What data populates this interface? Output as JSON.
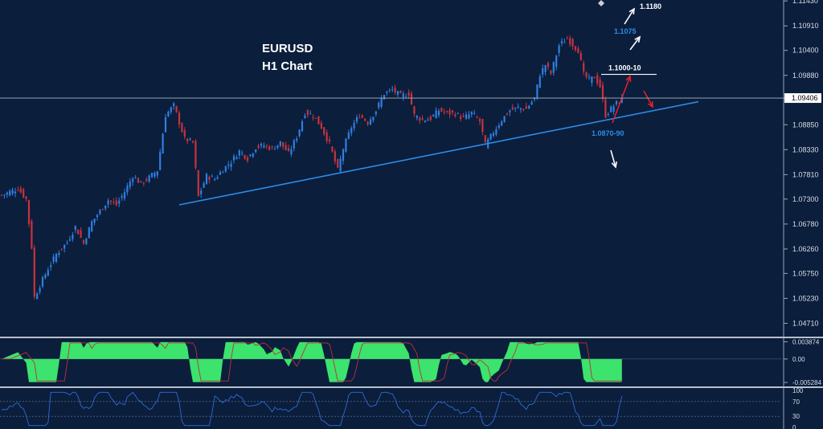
{
  "chart_data": [
    {
      "type": "candlestick",
      "title": "EURUSD",
      "subtitle": "H1 Chart",
      "ylim": [
        1.0445,
        1.1145
      ],
      "y_ticks": [
        "1.11430",
        "1.10910",
        "1.10400",
        "1.09880",
        "1.09406",
        "1.08850",
        "1.08330",
        "1.07810",
        "1.07300",
        "1.06780",
        "1.06260",
        "1.05750",
        "1.05230",
        "1.04710"
      ],
      "y_tick_values": [
        1.1143,
        1.1091,
        1.104,
        1.0988,
        1.09406,
        1.0885,
        1.0833,
        1.0781,
        1.073,
        1.0678,
        1.0626,
        1.0575,
        1.0523,
        1.0471
      ],
      "current_price": "1.09406",
      "current_price_value": 1.09406,
      "bar_count": 220,
      "path_points": [
        [
          0,
          1.0738
        ],
        [
          6,
          1.0752
        ],
        [
          9,
          1.073
        ],
        [
          11,
          1.063
        ],
        [
          12,
          1.0525
        ],
        [
          14,
          1.055
        ],
        [
          17,
          1.0585
        ],
        [
          20,
          1.0615
        ],
        [
          24,
          1.064
        ],
        [
          27,
          1.0672
        ],
        [
          30,
          1.0638
        ],
        [
          33,
          1.0682
        ],
        [
          36,
          1.0705
        ],
        [
          39,
          1.0728
        ],
        [
          42,
          1.0718
        ],
        [
          45,
          1.0745
        ],
        [
          48,
          1.0778
        ],
        [
          51,
          1.0762
        ],
        [
          54,
          1.0775
        ],
        [
          57,
          1.079
        ],
        [
          60,
          1.0905
        ],
        [
          63,
          1.0925
        ],
        [
          65,
          1.089
        ],
        [
          67,
          1.0855
        ],
        [
          70,
          1.0848
        ],
        [
          72,
          1.0735
        ],
        [
          75,
          1.0778
        ],
        [
          78,
          1.0772
        ],
        [
          81,
          1.0792
        ],
        [
          84,
          1.0808
        ],
        [
          87,
          1.083
        ],
        [
          90,
          1.0815
        ],
        [
          93,
          1.0838
        ],
        [
          96,
          1.0842
        ],
        [
          99,
          1.0835
        ],
        [
          102,
          1.0848
        ],
        [
          105,
          1.0825
        ],
        [
          108,
          1.086
        ],
        [
          111,
          1.091
        ],
        [
          114,
          1.0905
        ],
        [
          117,
          1.088
        ],
        [
          120,
          1.0845
        ],
        [
          123,
          1.079
        ],
        [
          125,
          1.0835
        ],
        [
          128,
          1.088
        ],
        [
          131,
          1.0905
        ],
        [
          134,
          1.089
        ],
        [
          137,
          1.0915
        ],
        [
          140,
          1.095
        ],
        [
          143,
          1.0958
        ],
        [
          146,
          1.0945
        ],
        [
          149,
          1.095
        ],
        [
          151,
          1.0905
        ],
        [
          154,
          1.0895
        ],
        [
          157,
          1.0898
        ],
        [
          160,
          1.0915
        ],
        [
          163,
          1.091
        ],
        [
          166,
          1.0908
        ],
        [
          169,
          1.0898
        ],
        [
          172,
          1.091
        ],
        [
          175,
          1.0892
        ],
        [
          177,
          1.0842
        ],
        [
          180,
          1.087
        ],
        [
          183,
          1.0895
        ],
        [
          186,
          1.0915
        ],
        [
          189,
          1.092
        ],
        [
          192,
          1.0918
        ],
        [
          195,
          1.094
        ],
        [
          197,
          1.099
        ],
        [
          199,
          1.101
        ],
        [
          201,
          1.0992
        ],
        [
          204,
          1.105
        ],
        [
          207,
          1.1065
        ],
        [
          209,
          1.1052
        ],
        [
          211,
          1.104
        ],
        [
          213,
          1.099
        ],
        [
          215,
          1.0978
        ],
        [
          217,
          1.0985
        ],
        [
          219,
          1.0965
        ],
        [
          221,
          1.0905
        ],
        [
          223,
          1.0918
        ],
        [
          225,
          1.093
        ],
        [
          227,
          1.0938
        ]
      ],
      "support_line": {
        "label": "1.0870-90",
        "from": [
          65,
          1.0718
        ],
        "to": [
          255,
          1.0933
        ]
      },
      "resistance_level": {
        "label": "1.1000-10",
        "from": [
          226,
          1.099
        ],
        "to": [
          250,
          1.099
        ]
      },
      "annotations": [
        {
          "text": "1.1180",
          "color": "#ffffff",
          "level": 1.1148
        },
        {
          "text": "1.1075",
          "color": "#2e8be6",
          "level": 1.1084
        }
      ],
      "scenario_arrows": [
        {
          "color": "#ffffff",
          "direction": "up"
        },
        {
          "color": "#ffffff",
          "direction": "up"
        },
        {
          "color": "#e0202c",
          "direction": "up"
        },
        {
          "color": "#e0202c",
          "direction": "down"
        },
        {
          "color": "#ffffff",
          "direction": "down"
        }
      ]
    },
    {
      "type": "histogram",
      "name": "oscillator",
      "y_ticks": [
        "0.003874",
        "0.00",
        "-0.005284"
      ],
      "ylim": [
        -0.006,
        0.0045
      ],
      "fill_color": "#3ce36c",
      "signal_color": "#c0303a"
    },
    {
      "type": "line",
      "name": "rsi",
      "y_ticks": [
        "100",
        "70",
        "30",
        "0"
      ],
      "ylim": [
        0,
        100
      ],
      "levels": [
        70,
        30
      ],
      "line_color": "#2f6cd8"
    }
  ]
}
